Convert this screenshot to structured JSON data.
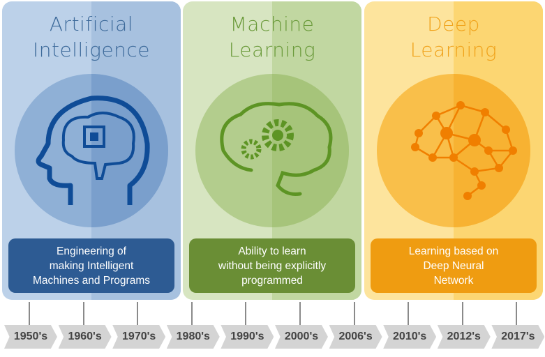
{
  "panels": [
    {
      "title_line1": "Artificial",
      "title_line2": "Intelligence",
      "desc": [
        "Engineering of",
        "making Intelligent",
        "Machines and Programs"
      ],
      "icon": "head-with-chip-brain-icon",
      "colors": {
        "bg": "#bcd1e9",
        "bg_dark": "#a7c1df",
        "circle": "#8fb0d6",
        "circle_dark": "#7a9fcc",
        "icon": "#0f4c97",
        "box": "#2d5b93",
        "title": "#3d6a9a"
      }
    },
    {
      "title_line1": "Machine",
      "title_line2": "Learning",
      "desc": [
        "Ability to learn",
        "without being explicitly",
        "programmed"
      ],
      "icon": "brain-with-gears-icon",
      "colors": {
        "bg": "#d7e5c1",
        "bg_dark": "#c1d7a1",
        "circle": "#b3cd8d",
        "circle_dark": "#a6c47a",
        "icon": "#5d9424",
        "box": "#6a8e35",
        "title": "#6a9a3a"
      }
    },
    {
      "title_line1": "Deep",
      "title_line2": "Learning",
      "desc": [
        "Learning based on",
        "Deep Neural",
        "Network"
      ],
      "icon": "neural-network-brain-icon",
      "colors": {
        "bg": "#fde49d",
        "bg_dark": "#fcd672",
        "circle": "#f9bf4a",
        "circle_dark": "#f7b232",
        "icon": "#f07f00",
        "box": "#ef9c11",
        "title": "#f0a21a"
      }
    }
  ],
  "timeline": [
    "1950's",
    "1960's",
    "1970's",
    "1980's",
    "1990's",
    "2000's",
    "2006's",
    "2010's",
    "2012's",
    "2017's"
  ]
}
